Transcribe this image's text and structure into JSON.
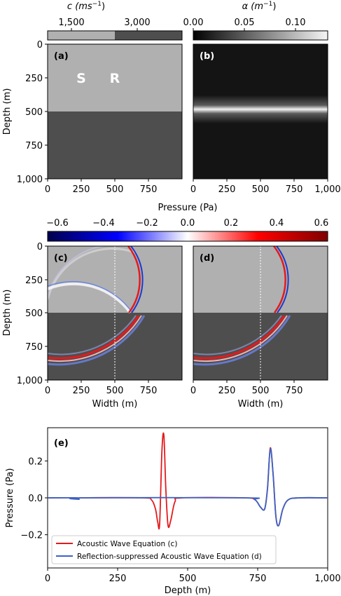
{
  "colors": {
    "upper_layer": "#b0b0b0",
    "lower_layer": "#4e4e4e",
    "attenuation_bg": "#141414",
    "red_series": "#e41a1c",
    "blue_series": "#3a63c6"
  },
  "figure": {
    "speed_colorbar": {
      "label": "c (ms",
      "label_sup": "−1",
      "label_close": ")",
      "ticks": [
        "1,500",
        "3,000"
      ]
    },
    "alpha_colorbar": {
      "label": "α (m",
      "label_sup": "−1",
      "label_close": ")",
      "ticks": [
        "0.00",
        "0.05",
        "0.10"
      ]
    },
    "pressure_colorbar": {
      "label": "Pressure (Pa)",
      "ticks": [
        "−0.6",
        "−0.4",
        "−0.2",
        "0.0",
        "0.2",
        "0.4",
        "0.6"
      ]
    },
    "panels": {
      "a": "(a)",
      "b": "(b)",
      "c": "(c)",
      "d": "(d)",
      "e": "(e)",
      "source_marker": "S",
      "receiver_marker": "R"
    },
    "depth_ticks": [
      "0",
      "250",
      "500",
      "750",
      "1,000"
    ],
    "width_ticks": [
      "0",
      "250",
      "500",
      "750"
    ],
    "ylabel_depth": "Depth (m)",
    "xlabel_width": "Width (m)"
  },
  "chart_data": {
    "type": "line",
    "xlabel": "Depth (m)",
    "ylabel": "Pressure (Pa)",
    "xlim": [
      0,
      1000
    ],
    "ylim": [
      -0.38,
      0.38
    ],
    "x_ticks": [
      "0",
      "250",
      "500",
      "750",
      "1,000"
    ],
    "y_ticks": [
      "0.2",
      "0.0",
      "−0.2"
    ],
    "legend_position": "bottom-left",
    "series": [
      {
        "name": "Acoustic Wave Equation (c)",
        "color": "#e41a1c",
        "x": [
          0,
          100,
          112,
          125,
          340,
          370,
          385,
          393,
          400,
          408,
          415,
          422,
          430,
          440,
          455,
          480,
          700,
          740,
          760,
          775,
          785,
          795,
          805,
          815,
          825,
          840,
          860,
          900,
          1000
        ],
        "y": [
          0,
          0,
          -0.008,
          0,
          0,
          -0.01,
          -0.06,
          -0.13,
          -0.14,
          0.25,
          0.34,
          0.05,
          -0.15,
          -0.12,
          -0.02,
          0,
          0,
          -0.01,
          -0.05,
          -0.06,
          0.05,
          0.27,
          0.13,
          -0.1,
          -0.15,
          -0.06,
          -0.01,
          0,
          0
        ]
      },
      {
        "name": "Reflection-suppressed Acoustic Wave Equation (d)",
        "color": "#3a63c6",
        "x": [
          0,
          100,
          112,
          125,
          700,
          740,
          760,
          775,
          785,
          795,
          805,
          815,
          825,
          840,
          860,
          900,
          1000
        ],
        "y": [
          0,
          0,
          -0.008,
          0,
          0,
          -0.01,
          -0.05,
          -0.06,
          0.05,
          0.265,
          0.13,
          -0.1,
          -0.15,
          -0.06,
          -0.01,
          0,
          0
        ]
      }
    ]
  }
}
